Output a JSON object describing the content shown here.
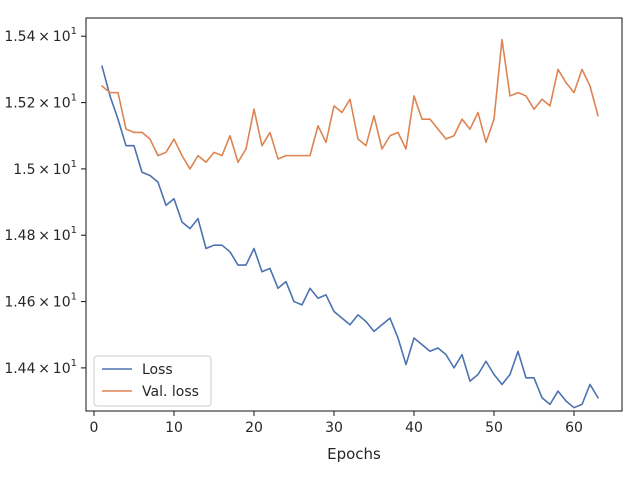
{
  "chart_data": {
    "type": "line",
    "xlabel": "Epochs",
    "ylabel": "",
    "title": "",
    "xlim": [
      -1,
      66
    ],
    "ylim": [
      14.27,
      15.455
    ],
    "x_ticks": [
      0,
      10,
      20,
      30,
      40,
      50,
      60
    ],
    "x_tick_labels": [
      "0",
      "10",
      "20",
      "30",
      "40",
      "50",
      "60"
    ],
    "y_ticks": [
      14.4,
      14.6,
      14.8,
      15.0,
      15.2,
      15.4
    ],
    "y_tick_labels": [
      {
        "mantissa": "1.44",
        "exp": "1"
      },
      {
        "mantissa": "1.46",
        "exp": "1"
      },
      {
        "mantissa": "1.48",
        "exp": "1"
      },
      {
        "mantissa": "1.5",
        "exp": "1"
      },
      {
        "mantissa": "1.52",
        "exp": "1"
      },
      {
        "mantissa": "1.54",
        "exp": "1"
      }
    ],
    "times_sign": "×",
    "base": "10",
    "grid": false,
    "legend_position": "lower-left",
    "x": [
      1,
      2,
      3,
      4,
      5,
      6,
      7,
      8,
      9,
      10,
      11,
      12,
      13,
      14,
      15,
      16,
      17,
      18,
      19,
      20,
      21,
      22,
      23,
      24,
      25,
      26,
      27,
      28,
      29,
      30,
      31,
      32,
      33,
      34,
      35,
      36,
      37,
      38,
      39,
      40,
      41,
      42,
      43,
      44,
      45,
      46,
      47,
      48,
      49,
      50,
      51,
      52,
      53,
      54,
      55,
      56,
      57,
      58,
      59,
      60,
      61,
      62,
      63
    ],
    "series": [
      {
        "name": "Loss",
        "color": "#4c72b0",
        "values": [
          15.31,
          15.22,
          15.15,
          15.07,
          15.07,
          14.99,
          14.98,
          14.96,
          14.89,
          14.91,
          14.84,
          14.82,
          14.85,
          14.76,
          14.77,
          14.77,
          14.75,
          14.71,
          14.71,
          14.76,
          14.69,
          14.7,
          14.64,
          14.66,
          14.6,
          14.59,
          14.64,
          14.61,
          14.62,
          14.57,
          14.55,
          14.53,
          14.56,
          14.54,
          14.51,
          14.53,
          14.55,
          14.49,
          14.41,
          14.49,
          14.47,
          14.45,
          14.46,
          14.44,
          14.4,
          14.44,
          14.36,
          14.38,
          14.42,
          14.38,
          14.35,
          14.38,
          14.45,
          14.37,
          14.37,
          14.31,
          14.29,
          14.33,
          14.3,
          14.28,
          14.29,
          14.35,
          14.31
        ]
      },
      {
        "name": "Val. loss",
        "color": "#dd8452",
        "values": [
          15.25,
          15.23,
          15.23,
          15.12,
          15.11,
          15.11,
          15.09,
          15.04,
          15.05,
          15.09,
          15.04,
          15.0,
          15.04,
          15.02,
          15.05,
          15.04,
          15.1,
          15.02,
          15.06,
          15.18,
          15.07,
          15.11,
          15.03,
          15.04,
          15.04,
          15.04,
          15.04,
          15.13,
          15.08,
          15.19,
          15.17,
          15.21,
          15.09,
          15.07,
          15.16,
          15.06,
          15.1,
          15.11,
          15.06,
          15.22,
          15.15,
          15.15,
          15.12,
          15.09,
          15.1,
          15.15,
          15.12,
          15.17,
          15.08,
          15.15,
          15.39,
          15.22,
          15.23,
          15.22,
          15.18,
          15.21,
          15.19,
          15.3,
          15.26,
          15.23,
          15.3,
          15.25,
          15.16
        ]
      }
    ]
  }
}
